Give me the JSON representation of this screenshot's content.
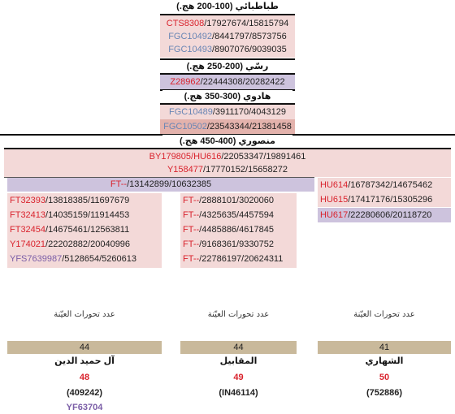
{
  "sections": {
    "tabatabai": "طباطبائي (100-200 هج.)",
    "rassi": "رسّي (200-250 هج.)",
    "hadawi": "هادوي (300-350 هج.)",
    "mansouri": "منصوري (400-450 هج.)"
  },
  "tab_rows": [
    {
      "snp": "CTS8308",
      "rest": "/17927674/15815794",
      "color": "red"
    },
    {
      "snp": "FGC10492",
      "rest": "/8441797/8573756",
      "color": "blue"
    },
    {
      "snp": "FGC10493",
      "rest": "/8907076/9039035",
      "color": "blue"
    }
  ],
  "rassi_row": {
    "snp": "Z28962",
    "rest": "/22444308/20282422",
    "color": "red"
  },
  "hadawi_rows": [
    {
      "snp": "FGC10489",
      "rest": "/3911170/4043129",
      "color": "blue"
    },
    {
      "snp": "FGC10502",
      "rest": "/23543344/21381458",
      "color": "blue"
    }
  ],
  "mansouri_rows": [
    {
      "snp": "BY179805/HU616",
      "rest": "/22053347/19891461",
      "color": "red"
    },
    {
      "snp": "Y158477",
      "rest": "/17770152/15658272",
      "color": "red"
    }
  ],
  "ft_row": {
    "snp": "FT--",
    "rest": "/13142899/10632385"
  },
  "col_left": [
    {
      "snp": "FT32393",
      "rest": "/13818385/11697679",
      "color": "red"
    },
    {
      "snp": "FT32413",
      "rest": "/14035159/11914453",
      "color": "red"
    },
    {
      "snp": "FT32454",
      "rest": "/14675461/12563811",
      "color": "red"
    },
    {
      "snp": "Y174021",
      "rest": "/22202882/20040996",
      "color": "red"
    },
    {
      "snp": "YFS7639987",
      "rest": "/5128654/5260613",
      "color": "purp"
    }
  ],
  "col_mid": [
    {
      "snp": "FT--",
      "rest": "/2888101/3020060",
      "color": "red"
    },
    {
      "snp": "FT--",
      "rest": "/4325635/4457594",
      "color": "red"
    },
    {
      "snp": "FT--",
      "rest": "/4485886/4617845",
      "color": "red"
    },
    {
      "snp": "FT--",
      "rest": "/9168361/9330752",
      "color": "red"
    },
    {
      "snp": "FT--",
      "rest": "/22786197/20624311",
      "color": "red"
    }
  ],
  "col_right": [
    {
      "snp": "HU614",
      "rest": "/16787342/14675462",
      "color": "red"
    },
    {
      "snp": "HU615",
      "rest": "/17417176/15305296",
      "color": "red"
    },
    {
      "snp": "HU617",
      "rest": "/22280606/20118720",
      "color": "red"
    }
  ],
  "samples": [
    {
      "title": "عدد تحورات العيّنة",
      "count": "44",
      "name": "آل حميد الدين",
      "num": "48",
      "code": "(409242)",
      "extra": "YF63704"
    },
    {
      "title": "عدد تحورات العيّنة",
      "count": "44",
      "name": "المقابيل",
      "num": "49",
      "code": "(IN46114)",
      "extra": ""
    },
    {
      "title": "عدد تحورات العيّنة",
      "count": "41",
      "name": "الشهاري",
      "num": "50",
      "code": "(752886)",
      "extra": ""
    }
  ]
}
